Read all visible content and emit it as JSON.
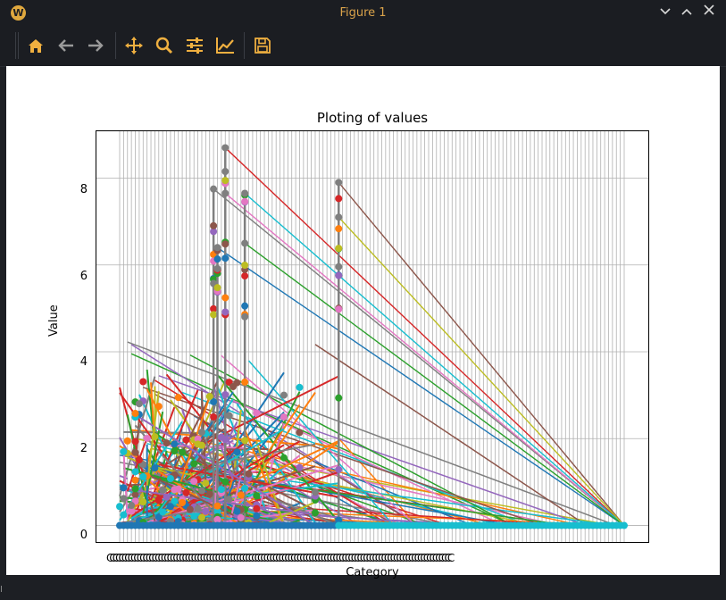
{
  "window": {
    "title": "Figure 1",
    "logo_letter": "W",
    "controls": [
      "chevron-down",
      "chevron-up",
      "close"
    ],
    "accent": "#e0a83e"
  },
  "toolbar": {
    "buttons": [
      {
        "name": "home-icon",
        "tooltip": "Home"
      },
      {
        "name": "back-arrow-icon",
        "tooltip": "Back"
      },
      {
        "name": "forward-arrow-icon",
        "tooltip": "Forward"
      },
      {
        "name": "pan-icon",
        "tooltip": "Pan"
      },
      {
        "name": "zoom-icon",
        "tooltip": "Zoom"
      },
      {
        "name": "subplots-icon",
        "tooltip": "Configure subplots"
      },
      {
        "name": "edit-axes-icon",
        "tooltip": "Edit axis"
      },
      {
        "name": "save-icon",
        "tooltip": "Save"
      }
    ]
  },
  "chart_data": {
    "type": "line",
    "title": "Ploting of values",
    "xlabel": "Category",
    "ylabel": "Value",
    "ylim": [
      -0.4,
      9.1
    ],
    "yticks": [
      0,
      2,
      4,
      6,
      8
    ],
    "x_tick_text": "CCCCCCCCCCCCCCCCCCCCCCCCCCCCCCCCCCCCCCCCCCCCCCCCCCCCCCCCCCCCCCCCCCCCCCCCCCCCCCCCCCCCCCCCCCCCCCCCCCCCCCCCCCCCCCCCCC",
    "grid": true,
    "category_count": 130,
    "series_colors": [
      "#1f77b4",
      "#ff7f0e",
      "#2ca02c",
      "#d62728",
      "#9467bd",
      "#8c564b",
      "#e377c2",
      "#7f7f7f",
      "#bcbd22",
      "#17becf"
    ],
    "peaks": [
      {
        "category_index": 24,
        "value": 7.75
      },
      {
        "category_index": 25,
        "value": 6.4
      },
      {
        "category_index": 27,
        "value": 8.7
      },
      {
        "category_index": 27,
        "value": 7.65
      },
      {
        "category_index": 32,
        "value": 7.65
      },
      {
        "category_index": 32,
        "value": 6.5
      },
      {
        "category_index": 56,
        "value": 7.9
      },
      {
        "category_index": 56,
        "value": 7.1
      }
    ]
  }
}
